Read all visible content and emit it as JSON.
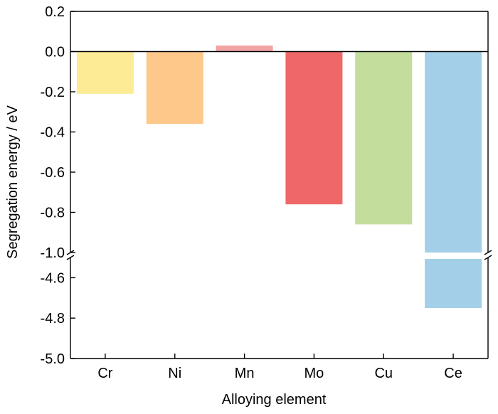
{
  "chart_data": {
    "type": "bar",
    "xlabel": "Alloying element",
    "ylabel": "Segregation energy / eV",
    "categories": [
      "Cr",
      "Ni",
      "Mn",
      "Mo",
      "Cu",
      "Ce"
    ],
    "values": [
      -0.21,
      -0.36,
      0.03,
      -0.76,
      -0.86,
      -4.75
    ],
    "colors": [
      "#fdeb96",
      "#fdc88a",
      "#f2a3a3",
      "#ef6868",
      "#c3dd9c",
      "#a3d0e8"
    ],
    "broken_axis": {
      "upper_range": [
        -1.0,
        0.2
      ],
      "lower_range": [
        -5.0,
        -4.5
      ]
    },
    "yticks_upper": [
      "0.2",
      "0.0",
      "-0.2",
      "-0.4",
      "-0.6",
      "-0.8",
      "-1.0"
    ],
    "yticks_lower": [
      "-4.6",
      "-4.8",
      "-5.0"
    ],
    "grid": false,
    "legend": "none"
  }
}
